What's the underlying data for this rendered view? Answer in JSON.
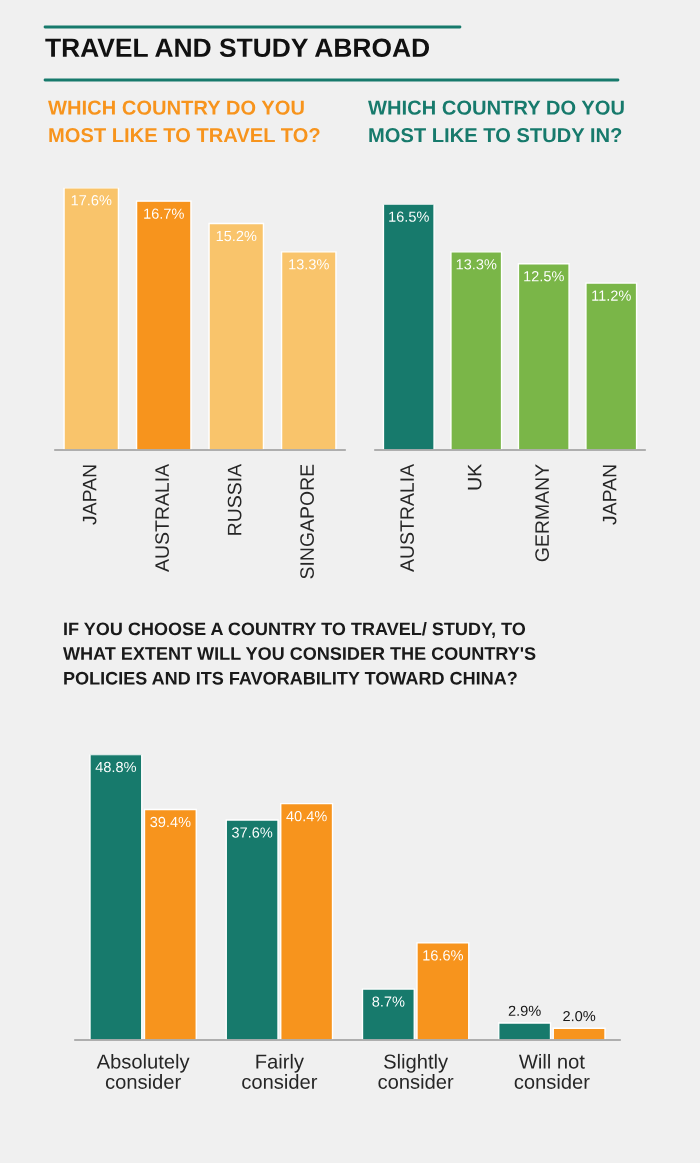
{
  "chart_data": [
    {
      "type": "bar",
      "title": "WHICH COUNTRY DO YOU\nMOST LIKE TO TRAVEL TO?",
      "annotations": [
        "TRAVEL AND STUDY ABROAD"
      ],
      "categories": [
        "JAPAN",
        "AUSTRALIA",
        "RUSSIA",
        "SINGAPORE"
      ],
      "values": [
        17.6,
        16.7,
        15.2,
        13.3
      ],
      "value_labels": [
        "17.6%",
        "16.7%",
        "15.2%",
        "13.3%"
      ],
      "colors": [
        "#f9c46b",
        "#f7941d",
        "#f9c46b",
        "#f9c46b"
      ],
      "grid": false,
      "legend": false
    },
    {
      "type": "bar",
      "title": "WHICH COUNTRY DO YOU\nMOST LIKE TO STUDY IN?",
      "categories": [
        "AUSTRALIA",
        "UK",
        "GERMANY",
        "JAPAN"
      ],
      "values": [
        16.5,
        13.3,
        12.5,
        11.2
      ],
      "value_labels": [
        "16.5%",
        "13.3%",
        "12.5%",
        "11.2%"
      ],
      "colors": [
        "#177a6c",
        "#7ab648",
        "#7ab648",
        "#7ab648"
      ],
      "grid": false,
      "legend": false
    },
    {
      "type": "bar",
      "title": "IF YOU CHOOSE A COUNTRY TO TRAVEL/ STUDY, TO\nWHAT EXTENT WILL YOU CONSIDER THE COUNTRY'S\nPOLICIES AND ITS FAVORABILITY TOWARD CHINA?",
      "categories": [
        "Absolutely\nconsider",
        "Fairly\nconsider",
        "Slightly\nconsider",
        "Will not\nconsider"
      ],
      "series": [
        {
          "color": "#177a6c",
          "values": [
            48.8,
            37.6,
            8.7,
            2.9
          ],
          "value_labels": [
            "48.8%",
            "37.6%",
            "8.7%",
            "2.9%"
          ]
        },
        {
          "color": "#f7941d",
          "values": [
            39.4,
            40.4,
            16.6,
            2.0
          ],
          "value_labels": [
            "39.4%",
            "40.4%",
            "16.6%",
            "2.0%"
          ]
        }
      ],
      "grid": false,
      "legend": false
    }
  ]
}
